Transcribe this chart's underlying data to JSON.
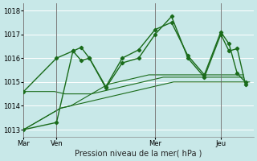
{
  "background_color": "#c8e8e8",
  "grid_color": "#ffffff",
  "line_color": "#1a6b1a",
  "ylim": [
    1012.7,
    1018.3
  ],
  "yticks": [
    1013,
    1014,
    1015,
    1016,
    1017,
    1018
  ],
  "day_labels": [
    "Mar",
    "Ven",
    "Mer",
    "Jeu"
  ],
  "day_positions": [
    0,
    16,
    64,
    96
  ],
  "total_points": 112,
  "xlabel": "Pression niveau de la mer( hPa )",
  "smooth_lines": [
    [
      1013.0,
      1013.05,
      1013.1,
      1013.15,
      1013.2,
      1013.25,
      1013.3,
      1013.35,
      1013.4,
      1013.45,
      1013.5,
      1013.55,
      1013.6,
      1013.65,
      1013.7,
      1013.75,
      1013.8,
      1013.85,
      1013.9,
      1013.92,
      1013.94,
      1013.96,
      1013.98,
      1014.0,
      1014.02,
      1014.04,
      1014.06,
      1014.08,
      1014.1,
      1014.12,
      1014.14,
      1014.16,
      1014.18,
      1014.2,
      1014.22,
      1014.24,
      1014.26,
      1014.28,
      1014.3,
      1014.32,
      1014.34,
      1014.36,
      1014.38,
      1014.4,
      1014.42,
      1014.44,
      1014.46,
      1014.48,
      1014.5,
      1014.52,
      1014.54,
      1014.56,
      1014.58,
      1014.6,
      1014.62,
      1014.64,
      1014.66,
      1014.68,
      1014.7,
      1014.72,
      1014.74,
      1014.76,
      1014.78,
      1014.8,
      1014.82,
      1014.84,
      1014.86,
      1014.88,
      1014.9,
      1014.92,
      1014.94,
      1014.96,
      1014.98,
      1015.0,
      1015.0,
      1015.0,
      1015.0,
      1015.0,
      1015.0,
      1015.0,
      1015.0,
      1015.0,
      1015.0,
      1015.0,
      1015.0,
      1015.0,
      1015.0,
      1015.0,
      1015.0,
      1015.0,
      1015.0,
      1015.0,
      1015.0,
      1015.0,
      1015.0,
      1015.0,
      1015.0,
      1015.0,
      1015.0,
      1015.0,
      1015.0,
      1015.0,
      1015.0,
      1015.0,
      1015.0,
      1015.0,
      1015.0,
      1015.0,
      1015.0,
      1015.0,
      1015.0
    ],
    [
      1013.0,
      1013.05,
      1013.1,
      1013.15,
      1013.2,
      1013.25,
      1013.3,
      1013.35,
      1013.4,
      1013.45,
      1013.5,
      1013.55,
      1013.6,
      1013.65,
      1013.7,
      1013.75,
      1013.8,
      1013.85,
      1013.9,
      1013.92,
      1013.94,
      1013.96,
      1013.98,
      1014.0,
      1014.05,
      1014.1,
      1014.15,
      1014.2,
      1014.25,
      1014.3,
      1014.35,
      1014.4,
      1014.45,
      1014.5,
      1014.55,
      1014.6,
      1014.65,
      1014.7,
      1014.75,
      1014.8,
      1014.85,
      1014.9,
      1014.92,
      1014.94,
      1014.96,
      1014.98,
      1015.0,
      1015.02,
      1015.04,
      1015.06,
      1015.08,
      1015.1,
      1015.12,
      1015.14,
      1015.16,
      1015.18,
      1015.2,
      1015.22,
      1015.24,
      1015.26,
      1015.28,
      1015.3,
      1015.3,
      1015.3,
      1015.3,
      1015.3,
      1015.3,
      1015.3,
      1015.3,
      1015.3,
      1015.3,
      1015.3,
      1015.3,
      1015.3,
      1015.3,
      1015.3,
      1015.3,
      1015.3,
      1015.3,
      1015.3,
      1015.3,
      1015.3,
      1015.3,
      1015.3,
      1015.3,
      1015.3,
      1015.3,
      1015.3,
      1015.3,
      1015.3,
      1015.3,
      1015.3,
      1015.3,
      1015.3,
      1015.3,
      1015.3,
      1015.3,
      1015.3,
      1015.3,
      1015.3,
      1015.3,
      1015.3,
      1015.3,
      1015.3,
      1015.3,
      1015.3,
      1015.3,
      1015.3
    ],
    [
      1014.6,
      1014.6,
      1014.6,
      1014.6,
      1014.6,
      1014.6,
      1014.6,
      1014.6,
      1014.6,
      1014.6,
      1014.6,
      1014.6,
      1014.6,
      1014.6,
      1014.6,
      1014.6,
      1014.58,
      1014.56,
      1014.54,
      1014.52,
      1014.5,
      1014.5,
      1014.5,
      1014.5,
      1014.5,
      1014.5,
      1014.5,
      1014.5,
      1014.5,
      1014.5,
      1014.5,
      1014.5,
      1014.5,
      1014.5,
      1014.52,
      1014.54,
      1014.56,
      1014.58,
      1014.6,
      1014.62,
      1014.64,
      1014.66,
      1014.68,
      1014.7,
      1014.72,
      1014.74,
      1014.76,
      1014.78,
      1014.8,
      1014.82,
      1014.84,
      1014.86,
      1014.88,
      1014.9,
      1014.92,
      1014.94,
      1014.96,
      1014.98,
      1015.0,
      1015.02,
      1015.04,
      1015.06,
      1015.08,
      1015.1,
      1015.12,
      1015.14,
      1015.16,
      1015.18,
      1015.2,
      1015.2,
      1015.2,
      1015.2,
      1015.2,
      1015.2,
      1015.2,
      1015.2,
      1015.2,
      1015.2,
      1015.2,
      1015.2,
      1015.2,
      1015.2,
      1015.2,
      1015.2,
      1015.2,
      1015.2,
      1015.2,
      1015.2,
      1015.2,
      1015.2,
      1015.2,
      1015.2,
      1015.2,
      1015.2,
      1015.2,
      1015.2,
      1015.2,
      1015.2,
      1015.2,
      1015.2,
      1015.2,
      1015.2,
      1015.2,
      1015.2,
      1015.2,
      1015.2,
      1015.2,
      1015.2
    ]
  ],
  "marker_lines": [
    {
      "x": [
        0,
        16,
        24,
        28,
        32,
        40,
        48,
        56,
        64,
        72,
        80,
        88,
        96,
        100,
        104,
        108
      ],
      "y": [
        1014.6,
        1016.0,
        1016.3,
        1016.45,
        1016.0,
        1014.75,
        1015.8,
        1016.0,
        1017.0,
        1017.75,
        1016.0,
        1015.2,
        1017.0,
        1016.3,
        1016.4,
        1014.9
      ]
    },
    {
      "x": [
        0,
        16,
        24,
        28,
        32,
        40,
        48,
        56,
        64,
        72,
        80,
        88,
        96,
        100,
        104,
        108
      ],
      "y": [
        1013.0,
        1013.3,
        1016.3,
        1015.9,
        1016.0,
        1014.8,
        1016.0,
        1016.35,
        1017.2,
        1017.5,
        1016.1,
        1015.3,
        1017.1,
        1016.6,
        1015.35,
        1015.0
      ]
    }
  ]
}
